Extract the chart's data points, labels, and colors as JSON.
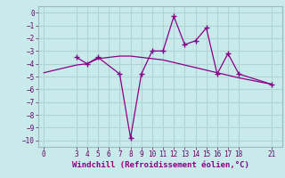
{
  "xlabel": "Windchill (Refroidissement éolien,°C)",
  "bg_color": "#c8eaea",
  "grid_color": "#b0d4d4",
  "line_color": "#880088",
  "ylim": [
    -10.5,
    0.5
  ],
  "xlim": [
    -0.5,
    22
  ],
  "yticks": [
    0,
    -1,
    -2,
    -3,
    -4,
    -5,
    -6,
    -7,
    -8,
    -9,
    -10
  ],
  "xticks": [
    0,
    3,
    4,
    5,
    6,
    7,
    8,
    9,
    10,
    11,
    12,
    13,
    14,
    15,
    16,
    17,
    18,
    21
  ],
  "data_x": [
    3,
    4,
    5,
    7,
    8,
    9,
    10,
    11,
    12,
    13,
    14,
    15,
    16,
    17,
    18,
    21
  ],
  "data_y": [
    -3.5,
    -4.0,
    -3.5,
    -4.8,
    -9.8,
    -4.8,
    -3.0,
    -3.0,
    -0.3,
    -2.5,
    -2.2,
    -1.2,
    -4.8,
    -3.2,
    -4.8,
    -5.6
  ],
  "trend_x": [
    0,
    3,
    4,
    5,
    6,
    7,
    8,
    9,
    10,
    11,
    12,
    13,
    14,
    15,
    16,
    17,
    18,
    21
  ],
  "trend_y": [
    -4.7,
    -4.1,
    -4.0,
    -3.6,
    -3.5,
    -3.4,
    -3.4,
    -3.5,
    -3.6,
    -3.7,
    -3.9,
    -4.1,
    -4.3,
    -4.5,
    -4.7,
    -4.9,
    -5.1,
    -5.6
  ]
}
